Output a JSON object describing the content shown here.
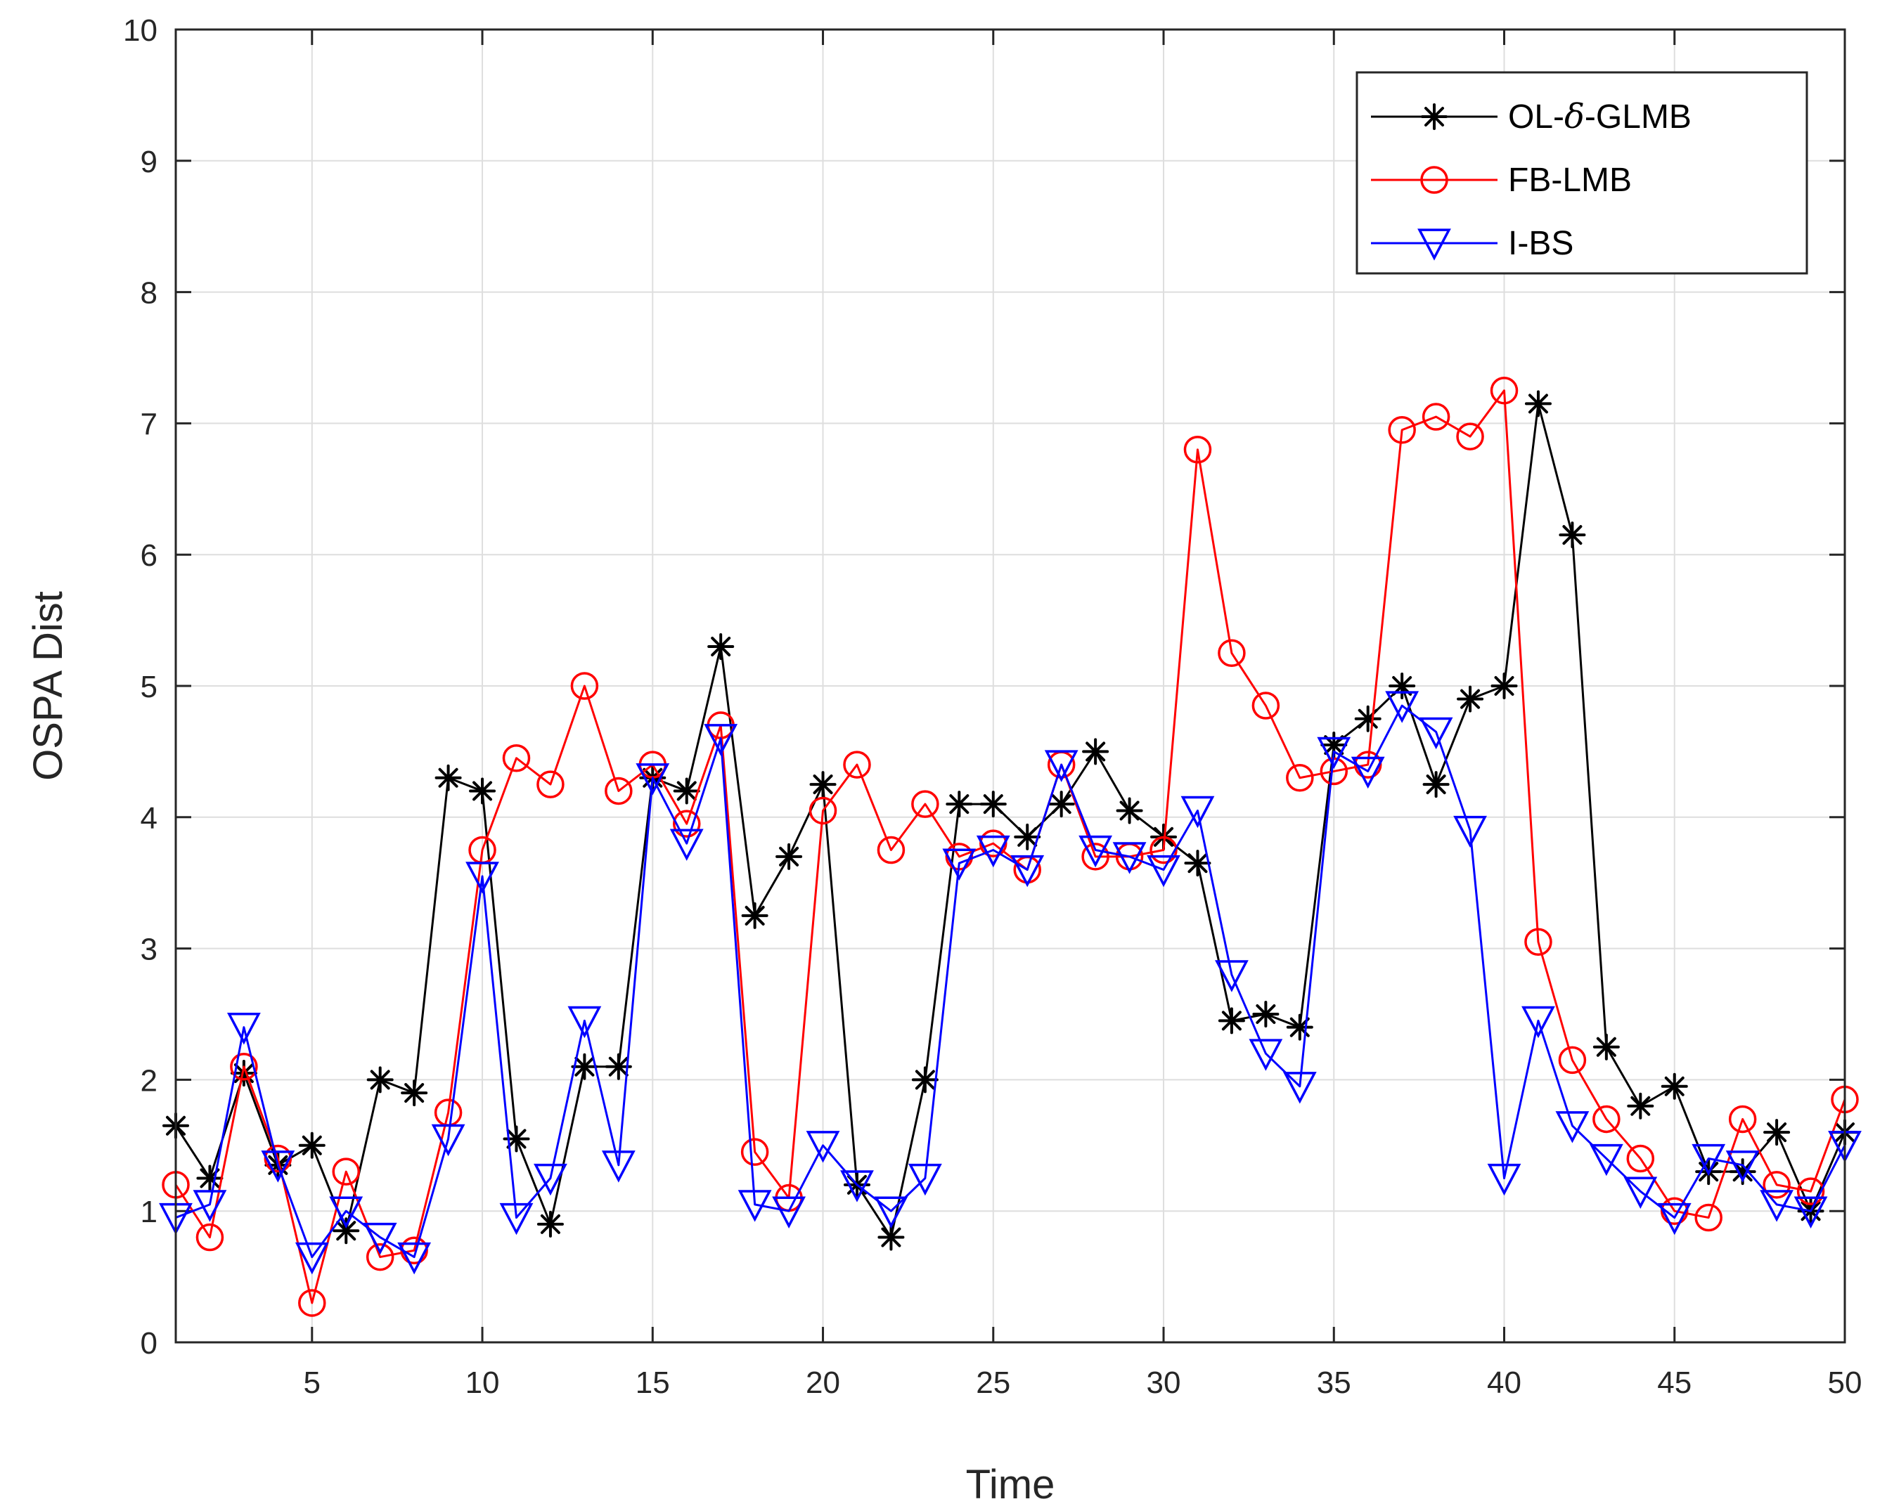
{
  "chart_data": {
    "type": "line",
    "title": "",
    "xlabel": "Time",
    "ylabel": "OSPA Dist",
    "xlim": [
      1,
      50
    ],
    "ylim": [
      0,
      10
    ],
    "xticks": [
      5,
      10,
      15,
      20,
      25,
      30,
      35,
      40,
      45,
      50
    ],
    "yticks": [
      0,
      1,
      2,
      3,
      4,
      5,
      6,
      7,
      8,
      9,
      10
    ],
    "grid": true,
    "legend_position": "top-right",
    "x": [
      1,
      2,
      3,
      4,
      5,
      6,
      7,
      8,
      9,
      10,
      11,
      12,
      13,
      14,
      15,
      16,
      17,
      18,
      19,
      20,
      21,
      22,
      23,
      24,
      25,
      26,
      27,
      28,
      29,
      30,
      31,
      32,
      33,
      34,
      35,
      36,
      37,
      38,
      39,
      40,
      41,
      42,
      43,
      44,
      45,
      46,
      47,
      48,
      49,
      50
    ],
    "series": [
      {
        "name": "OL-δ-GLMB",
        "legend_prefix": "OL-",
        "legend_symbol": "δ",
        "legend_suffix": "-GLMB",
        "color": "#000000",
        "marker": "asterisk",
        "values": [
          1.65,
          1.25,
          2.05,
          1.35,
          1.5,
          0.85,
          2.0,
          1.9,
          4.3,
          4.2,
          1.55,
          0.9,
          2.1,
          2.1,
          4.3,
          4.2,
          5.3,
          3.25,
          3.7,
          4.25,
          1.2,
          0.8,
          2.0,
          4.1,
          4.1,
          3.85,
          4.1,
          4.5,
          4.05,
          3.85,
          3.65,
          2.45,
          2.5,
          2.4,
          4.55,
          4.75,
          5.0,
          4.25,
          4.9,
          5.0,
          7.15,
          6.15,
          2.25,
          1.8,
          1.95,
          1.3,
          1.3,
          1.6,
          1.0,
          1.6
        ]
      },
      {
        "name": "FB-LMB",
        "color": "#ff0000",
        "marker": "circle",
        "values": [
          1.2,
          0.8,
          2.1,
          1.4,
          0.3,
          1.3,
          0.65,
          0.7,
          1.75,
          3.75,
          4.45,
          4.25,
          5.0,
          4.2,
          4.4,
          3.95,
          4.7,
          1.45,
          1.1,
          4.05,
          4.4,
          3.75,
          4.1,
          3.7,
          3.8,
          3.6,
          4.4,
          3.7,
          3.7,
          3.75,
          6.8,
          5.25,
          4.85,
          4.3,
          4.35,
          4.4,
          6.95,
          7.05,
          6.9,
          7.25,
          3.05,
          2.15,
          1.7,
          1.4,
          1.0,
          0.95,
          1.7,
          1.2,
          1.15,
          1.85
        ]
      },
      {
        "name": "I-BS",
        "color": "#0000ff",
        "marker": "triangle-down",
        "values": [
          0.95,
          1.05,
          2.4,
          1.35,
          0.65,
          1.0,
          0.8,
          0.65,
          1.55,
          3.55,
          0.95,
          1.25,
          2.45,
          1.35,
          4.3,
          3.8,
          4.6,
          1.05,
          1.0,
          1.5,
          1.2,
          1.0,
          1.25,
          3.65,
          3.75,
          3.6,
          4.4,
          3.75,
          3.7,
          3.6,
          4.05,
          2.8,
          2.2,
          1.95,
          4.5,
          4.35,
          4.85,
          4.65,
          3.9,
          1.25,
          2.45,
          1.65,
          1.4,
          1.15,
          0.95,
          1.4,
          1.35,
          1.05,
          1.0,
          1.5
        ]
      }
    ]
  }
}
